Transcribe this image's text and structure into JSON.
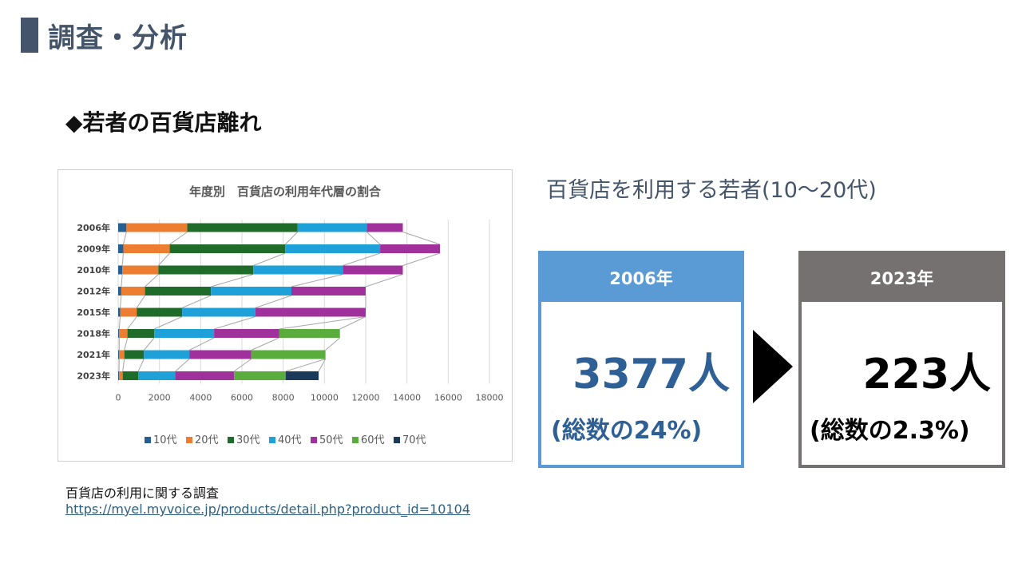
{
  "page": {
    "title": "調査・分析",
    "subtitle": "◆若者の百貨店離れ"
  },
  "source": {
    "label": "百貨店の利用に関する調査",
    "url": "https://myel.myvoice.jp/products/detail.php?product_id=10104"
  },
  "summary": {
    "heading": "百貨店を利用する若者(10～20代)",
    "card_2006": {
      "year": "2006年",
      "count": "3377人",
      "share": "(総数の24%)"
    },
    "card_2023": {
      "year": "2023年",
      "count": "223人",
      "share": "(総数の2.3%)"
    }
  },
  "colors": {
    "10代": "#255e91",
    "20代": "#ed7d31",
    "30代": "#1f6b2a",
    "40代": "#1ea0d8",
    "50代": "#a0309c",
    "60代": "#5aad3c",
    "70代": "#1b3a5a",
    "accent_2006": "#5b9bd5",
    "accent_2023": "#767171"
  },
  "chart_data": {
    "type": "bar",
    "orientation": "horizontal-stacked",
    "title": "年度別　百貨店の利用年代層の割合",
    "categories": [
      "2006年",
      "2009年",
      "2010年",
      "2012年",
      "2015年",
      "2018年",
      "2021年",
      "2023年"
    ],
    "series": [
      {
        "name": "10代",
        "values": [
          400,
          250,
          200,
          150,
          100,
          50,
          50,
          40
        ]
      },
      {
        "name": "20代",
        "values": [
          2950,
          2250,
          1750,
          1150,
          800,
          400,
          250,
          180
        ]
      },
      {
        "name": "30代",
        "values": [
          5350,
          5600,
          4600,
          3200,
          2200,
          1300,
          950,
          750
        ]
      },
      {
        "name": "40代",
        "values": [
          3350,
          4600,
          4350,
          3900,
          3550,
          2900,
          2200,
          1800
        ]
      },
      {
        "name": "50代",
        "values": [
          1750,
          2900,
          2900,
          3600,
          5350,
          3150,
          3000,
          2850
        ]
      },
      {
        "name": "60代",
        "values": [
          0,
          0,
          0,
          0,
          0,
          2950,
          3600,
          2500
        ]
      },
      {
        "name": "70代",
        "values": [
          0,
          0,
          0,
          0,
          0,
          0,
          0,
          1600
        ]
      }
    ],
    "xlim": [
      0,
      18000
    ],
    "xticks": [
      "0",
      "2000",
      "4000",
      "6000",
      "8000",
      "10000",
      "12000",
      "14000",
      "16000",
      "18000"
    ],
    "grid": true,
    "legend": "bottom"
  }
}
